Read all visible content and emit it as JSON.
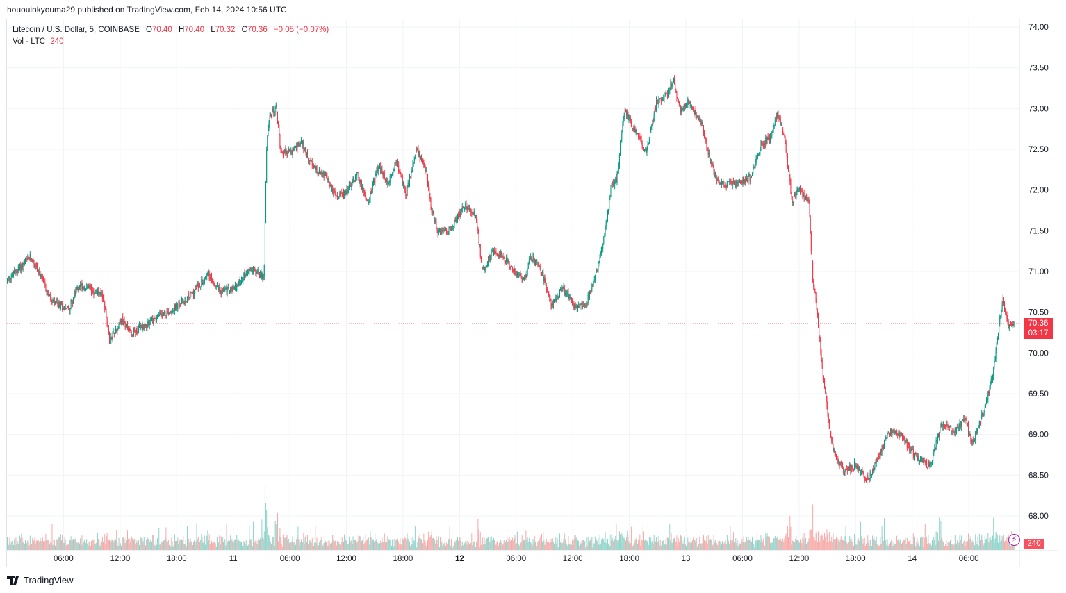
{
  "header": {
    "published": "hououinkyouma29 published on TradingView.com, Feb 14, 2024 10:56 UTC"
  },
  "legend": {
    "symbol": "Litecoin / U.S. Dollar, 5, COINBASE",
    "o_label": "O",
    "o": "70.40",
    "h_label": "H",
    "h": "70.40",
    "l_label": "L",
    "l": "70.32",
    "c_label": "C",
    "c": "70.36",
    "change": "−0.05 (−0.07%)",
    "vol_label": "Vol · LTC",
    "vol": "240"
  },
  "price_tag": {
    "price": "70.36",
    "countdown": "03:17"
  },
  "volume_tag": "240",
  "brand": "TradingView",
  "colors": {
    "up": "#089981",
    "down": "#f23645",
    "vol_up": "#8fd3ca",
    "vol_down": "#f7a9a7",
    "last_line": "#f23645"
  },
  "chart_data": {
    "type": "candlestick",
    "title": "Litecoin / U.S. Dollar, 5, COINBASE",
    "interval_minutes": 5,
    "x_unit": "hours since Feb 10 00:00 UTC",
    "ylim": [
      67.75,
      74.1
    ],
    "y_ticks": [
      "74.00",
      "73.50",
      "73.00",
      "72.50",
      "72.00",
      "71.50",
      "71.00",
      "70.50",
      "70.00",
      "69.50",
      "69.00",
      "68.50",
      "68.00"
    ],
    "x_ticks": [
      {
        "h": 6,
        "label": "06:00"
      },
      {
        "h": 12,
        "label": "12:00"
      },
      {
        "h": 18,
        "label": "18:00"
      },
      {
        "h": 24,
        "label": "11",
        "bold": false
      },
      {
        "h": 30,
        "label": "06:00"
      },
      {
        "h": 36,
        "label": "12:00"
      },
      {
        "h": 42,
        "label": "18:00"
      },
      {
        "h": 48,
        "label": "12",
        "bold": true
      },
      {
        "h": 54,
        "label": "06:00"
      },
      {
        "h": 60,
        "label": "12:00"
      },
      {
        "h": 66,
        "label": "18:00"
      },
      {
        "h": 72,
        "label": "13"
      },
      {
        "h": 78,
        "label": "06:00"
      },
      {
        "h": 84,
        "label": "12:00"
      },
      {
        "h": 90,
        "label": "18:00"
      },
      {
        "h": 96,
        "label": "14"
      },
      {
        "h": 102,
        "label": "06:00"
      }
    ],
    "last_price": 70.36,
    "price_path": [
      [
        0,
        70.88
      ],
      [
        0.7,
        70.97
      ],
      [
        2.6,
        71.18
      ],
      [
        3.7,
        70.92
      ],
      [
        4.8,
        70.62
      ],
      [
        6.6,
        70.54
      ],
      [
        7.7,
        70.84
      ],
      [
        9.6,
        70.75
      ],
      [
        10.3,
        70.67
      ],
      [
        10.9,
        70.16
      ],
      [
        12.2,
        70.41
      ],
      [
        13.3,
        70.24
      ],
      [
        15.5,
        70.41
      ],
      [
        17.7,
        70.54
      ],
      [
        19.2,
        70.67
      ],
      [
        21.4,
        70.97
      ],
      [
        22.8,
        70.75
      ],
      [
        24.3,
        70.8
      ],
      [
        25.8,
        71.05
      ],
      [
        27.3,
        70.92
      ],
      [
        27.6,
        72.63
      ],
      [
        28.0,
        72.93
      ],
      [
        28.6,
        73.01
      ],
      [
        29.1,
        72.46
      ],
      [
        30.2,
        72.46
      ],
      [
        31.3,
        72.59
      ],
      [
        32.4,
        72.29
      ],
      [
        33.9,
        72.16
      ],
      [
        35.0,
        71.9
      ],
      [
        36.1,
        71.99
      ],
      [
        37.2,
        72.2
      ],
      [
        38.3,
        71.82
      ],
      [
        39.4,
        72.29
      ],
      [
        40.5,
        72.07
      ],
      [
        41.3,
        72.37
      ],
      [
        42.4,
        71.95
      ],
      [
        43.5,
        72.5
      ],
      [
        44.4,
        72.29
      ],
      [
        45.0,
        71.78
      ],
      [
        45.7,
        71.48
      ],
      [
        47.2,
        71.52
      ],
      [
        48.6,
        71.82
      ],
      [
        49.7,
        71.69
      ],
      [
        50.5,
        71.01
      ],
      [
        51.6,
        71.26
      ],
      [
        52.7,
        71.18
      ],
      [
        53.8,
        71.01
      ],
      [
        54.9,
        70.88
      ],
      [
        55.6,
        71.18
      ],
      [
        56.7,
        71.01
      ],
      [
        57.8,
        70.58
      ],
      [
        59.0,
        70.8
      ],
      [
        60.4,
        70.54
      ],
      [
        61.5,
        70.62
      ],
      [
        62.6,
        71.01
      ],
      [
        63.4,
        71.43
      ],
      [
        64.1,
        72.03
      ],
      [
        64.8,
        72.16
      ],
      [
        65.2,
        72.71
      ],
      [
        65.6,
        72.97
      ],
      [
        66.3,
        72.8
      ],
      [
        67.8,
        72.46
      ],
      [
        68.9,
        73.06
      ],
      [
        70.0,
        73.18
      ],
      [
        70.7,
        73.35
      ],
      [
        71.5,
        72.97
      ],
      [
        72.2,
        73.1
      ],
      [
        73.7,
        72.84
      ],
      [
        74.4,
        72.46
      ],
      [
        75.5,
        72.07
      ],
      [
        77.4,
        72.07
      ],
      [
        78.9,
        72.16
      ],
      [
        80.0,
        72.54
      ],
      [
        81.1,
        72.67
      ],
      [
        81.8,
        72.97
      ],
      [
        82.5,
        72.63
      ],
      [
        83.3,
        71.86
      ],
      [
        84.0,
        72.03
      ],
      [
        85.1,
        71.82
      ],
      [
        85.5,
        70.92
      ],
      [
        85.9,
        70.58
      ],
      [
        86.3,
        70.07
      ],
      [
        86.6,
        69.73
      ],
      [
        87.1,
        69.22
      ],
      [
        87.7,
        68.79
      ],
      [
        88.8,
        68.54
      ],
      [
        89.9,
        68.62
      ],
      [
        91.3,
        68.45
      ],
      [
        92.5,
        68.71
      ],
      [
        93.6,
        69.05
      ],
      [
        95.0,
        68.97
      ],
      [
        96.5,
        68.71
      ],
      [
        98.0,
        68.62
      ],
      [
        99.1,
        69.13
      ],
      [
        100.5,
        69.05
      ],
      [
        101.7,
        69.18
      ],
      [
        102.4,
        68.88
      ],
      [
        103.9,
        69.39
      ],
      [
        104.6,
        69.73
      ],
      [
        105.1,
        70.24
      ],
      [
        105.7,
        70.67
      ],
      [
        106.2,
        70.33
      ],
      [
        106.8,
        70.36
      ]
    ]
  }
}
